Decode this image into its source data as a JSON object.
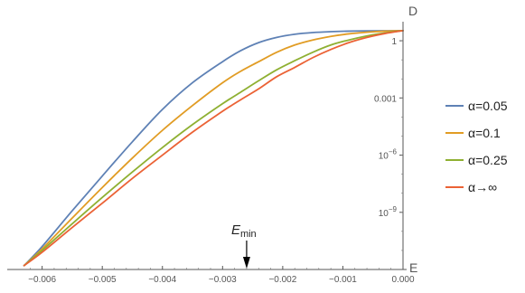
{
  "chart_data": {
    "type": "line",
    "xlabel": "E",
    "ylabel": "D",
    "xlim": [
      -0.0064,
      0.0
    ],
    "yscale": "log",
    "ylim": [
      1e-12,
      10
    ],
    "x_ticks": [
      {
        "value": -0.006,
        "label": "−0.006"
      },
      {
        "value": -0.005,
        "label": "−0.005"
      },
      {
        "value": -0.004,
        "label": "−0.004"
      },
      {
        "value": -0.003,
        "label": "−0.003"
      },
      {
        "value": -0.002,
        "label": "−0.002"
      },
      {
        "value": -0.001,
        "label": "−0.001"
      },
      {
        "value": 0.0,
        "label": "0.000"
      }
    ],
    "y_ticks": [
      {
        "value": 1,
        "base": "1",
        "exp": ""
      },
      {
        "value": 0.001,
        "base": "0.001",
        "exp": ""
      },
      {
        "value": 1e-06,
        "base": "10",
        "exp": "−6"
      },
      {
        "value": 1e-09,
        "base": "10",
        "exp": "−9"
      }
    ],
    "grid": false,
    "legend_position": "right",
    "series": [
      {
        "name": "α=0.05",
        "color": "#5e81b5",
        "x": [
          -0.0063,
          -0.006,
          -0.0055,
          -0.005,
          -0.0045,
          -0.004,
          -0.0035,
          -0.003,
          -0.0027,
          -0.0024,
          -0.0021,
          -0.0018,
          -0.0015,
          -0.0012,
          -0.0009,
          -0.0006,
          -0.0003,
          0.0
        ],
        "y": [
          1.6e-12,
          1.6e-11,
          1.2e-09,
          8e-08,
          5e-06,
          0.00025,
          0.0063,
          0.08,
          0.3,
          0.8,
          1.5,
          2.2,
          2.7,
          3.0,
          3.2,
          3.3,
          3.35,
          3.4
        ]
      },
      {
        "name": "α=0.1",
        "color": "#e19c24",
        "x": [
          -0.0063,
          -0.006,
          -0.0055,
          -0.005,
          -0.0045,
          -0.004,
          -0.0035,
          -0.003,
          -0.0027,
          -0.0024,
          -0.0021,
          -0.0018,
          -0.0015,
          -0.0012,
          -0.0009,
          -0.0006,
          -0.0003,
          0.0
        ],
        "y": [
          1.6e-12,
          1.2e-11,
          5e-10,
          2e-08,
          7e-07,
          2e-05,
          0.0004,
          0.0063,
          0.025,
          0.08,
          0.25,
          0.6,
          1.1,
          1.7,
          2.3,
          2.8,
          3.2,
          3.4
        ]
      },
      {
        "name": "α=0.25",
        "color": "#8fb032",
        "x": [
          -0.0063,
          -0.006,
          -0.0055,
          -0.005,
          -0.0045,
          -0.004,
          -0.0035,
          -0.003,
          -0.0027,
          -0.0024,
          -0.0021,
          -0.0018,
          -0.0015,
          -0.0012,
          -0.0009,
          -0.0006,
          -0.0003,
          0.0
        ],
        "y": [
          1.6e-12,
          1e-11,
          2.5e-10,
          6e-09,
          1.3e-07,
          2.5e-06,
          4e-05,
          0.0005,
          0.002,
          0.008,
          0.03,
          0.09,
          0.25,
          0.6,
          1.1,
          1.8,
          2.6,
          3.4
        ]
      },
      {
        "name": "α→∞",
        "color": "#eb6235",
        "x": [
          -0.0063,
          -0.006,
          -0.0055,
          -0.005,
          -0.0045,
          -0.004,
          -0.0035,
          -0.003,
          -0.0027,
          -0.0024,
          -0.0021,
          -0.0018,
          -0.0015,
          -0.0012,
          -0.0009,
          -0.0006,
          -0.0003,
          0.0
        ],
        "y": [
          1.6e-12,
          8e-12,
          1.6e-10,
          3e-09,
          6e-08,
          1e-06,
          1.6e-05,
          0.0002,
          0.0008,
          0.003,
          0.013,
          0.04,
          0.13,
          0.35,
          0.8,
          1.5,
          2.4,
          3.4
        ]
      }
    ],
    "annotation": {
      "base": "E",
      "sub": "min",
      "x": -0.0026
    }
  }
}
